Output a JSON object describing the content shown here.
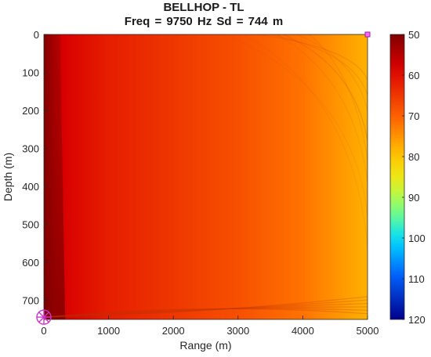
{
  "chart_data": {
    "type": "heatmap",
    "title": "BELLHOP - TL",
    "subtitle": "Freq = 9750 Hz    Sd = 744 m",
    "xlabel": "Range (m)",
    "ylabel": "Depth (m)",
    "xlim": [
      0,
      5000
    ],
    "ylim": [
      0,
      750
    ],
    "y_direction": "reversed",
    "x_ticks": [
      0,
      1000,
      2000,
      3000,
      4000,
      5000
    ],
    "y_ticks": [
      0,
      100,
      200,
      300,
      400,
      500,
      600,
      700
    ],
    "colorbar": {
      "ticks": [
        50,
        60,
        70,
        80,
        90,
        100,
        110,
        120
      ],
      "range": [
        50,
        120
      ],
      "colormap": "jet-reversed"
    },
    "transmission_loss_profile": {
      "range": [
        0,
        300,
        1000,
        2000,
        3000,
        4000,
        5000
      ],
      "tl": [
        50,
        58,
        62,
        65,
        68,
        72,
        78
      ]
    },
    "source": {
      "range": 0,
      "depth": 744,
      "color": "#cc33cc"
    },
    "receiver": {
      "range": 5000,
      "depth": 0,
      "color": "#cc33cc"
    }
  }
}
